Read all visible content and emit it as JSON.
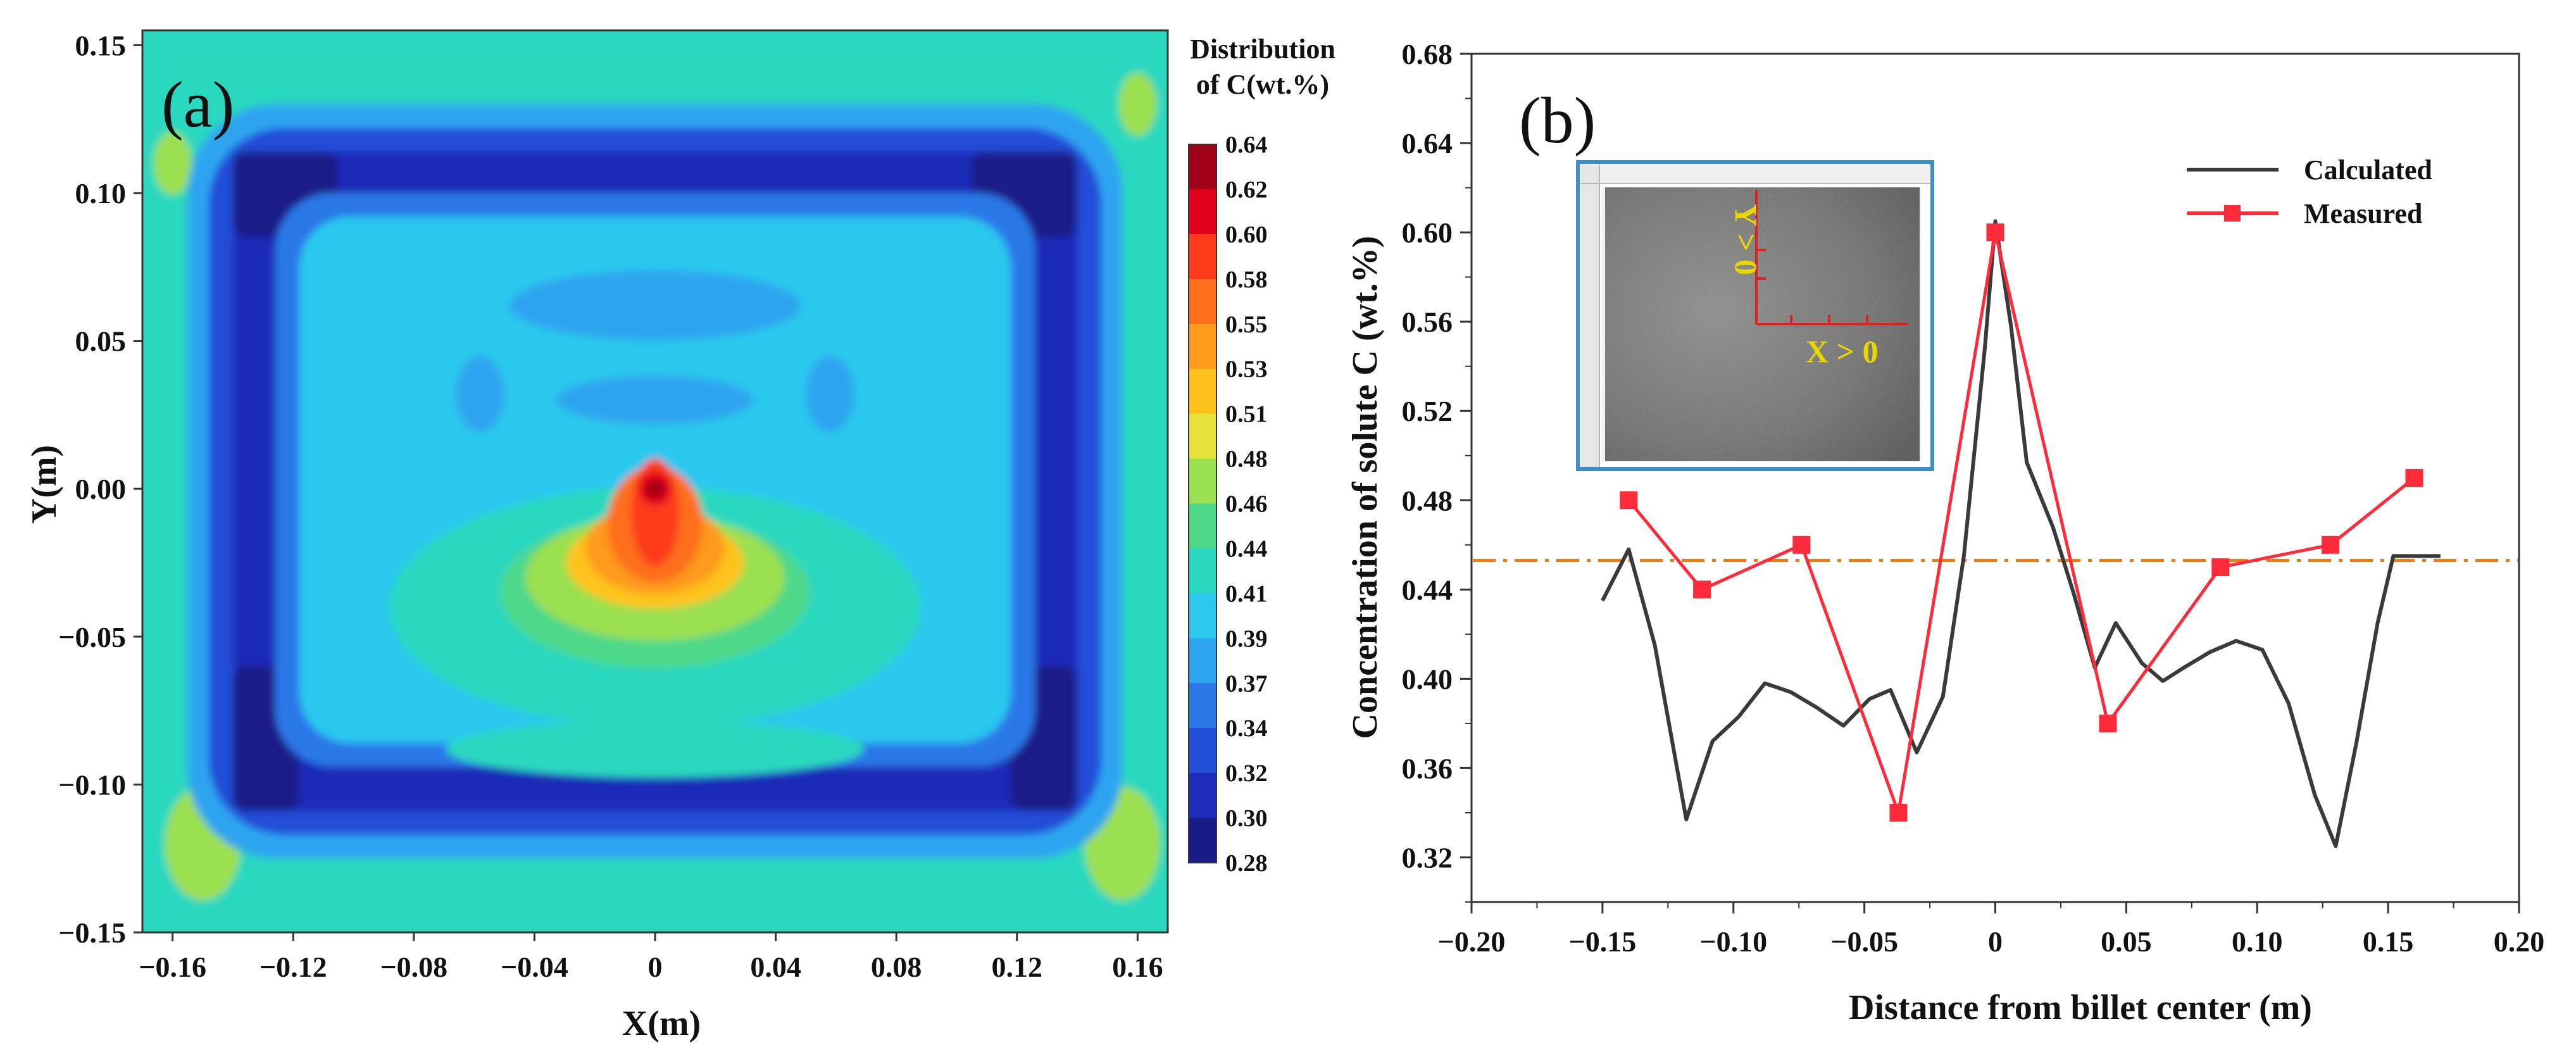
{
  "chart_data": [
    {
      "type": "heatmap",
      "panel_label": "(a)",
      "xlabel": "X(m)",
      "ylabel": "Y(m)",
      "xlim": [
        -0.17,
        0.17
      ],
      "ylim": [
        -0.15,
        0.155
      ],
      "xticks": [
        {
          "value": -0.16,
          "label": "−0.16"
        },
        {
          "value": -0.12,
          "label": "−0.12"
        },
        {
          "value": -0.08,
          "label": "−0.08"
        },
        {
          "value": -0.04,
          "label": "−0.04"
        },
        {
          "value": 0,
          "label": "0"
        },
        {
          "value": 0.04,
          "label": "0.04"
        },
        {
          "value": 0.08,
          "label": "0.08"
        },
        {
          "value": 0.12,
          "label": "0.12"
        },
        {
          "value": 0.16,
          "label": "0.16"
        }
      ],
      "yticks": [
        {
          "value": 0.15,
          "label": "0.15"
        },
        {
          "value": 0.1,
          "label": "0.10"
        },
        {
          "value": 0.05,
          "label": "0.05"
        },
        {
          "value": 0.0,
          "label": "0.00"
        },
        {
          "value": -0.05,
          "label": "−0.05"
        },
        {
          "value": -0.1,
          "label": "−0.10"
        },
        {
          "value": -0.15,
          "label": "−0.15"
        }
      ],
      "colorbar": {
        "title_line1": "Distribution",
        "title_line2": "of C(wt.%)",
        "ticks": [
          "0.64",
          "0.62",
          "0.60",
          "0.58",
          "0.55",
          "0.53",
          "0.51",
          "0.48",
          "0.46",
          "0.44",
          "0.41",
          "0.39",
          "0.37",
          "0.34",
          "0.32",
          "0.30",
          "0.28"
        ],
        "colors": [
          "#a00018",
          "#e0001c",
          "#ff3a1a",
          "#ff6e1a",
          "#ff9a1a",
          "#ffc21a",
          "#e6e23a",
          "#9be050",
          "#4ed88a",
          "#2ad8c0",
          "#2cc8ee",
          "#2ea4f0",
          "#2a78e8",
          "#224ed8",
          "#1c2cb8",
          "#1a1a88"
        ],
        "min": 0.28,
        "max": 0.64
      },
      "field_description_levels": {
        "background": 0.43,
        "outer_ring": 0.31,
        "inner_corner_pockets": 0.28,
        "interior": 0.41,
        "arches": 0.38,
        "center_peak": 0.64
      }
    },
    {
      "type": "line",
      "panel_label": "(b)",
      "xlabel": "Distance from billet center (m)",
      "ylabel": "Concentration of solute C (wt.%)",
      "xlim": [
        -0.2,
        0.2
      ],
      "ylim": [
        0.3,
        0.68
      ],
      "xticks": [
        {
          "value": -0.2,
          "label": "−0.20"
        },
        {
          "value": -0.15,
          "label": "−0.15"
        },
        {
          "value": -0.1,
          "label": "−0.10"
        },
        {
          "value": -0.05,
          "label": "−0.05"
        },
        {
          "value": 0,
          "label": "0"
        },
        {
          "value": 0.05,
          "label": "0.05"
        },
        {
          "value": 0.1,
          "label": "0.10"
        },
        {
          "value": 0.15,
          "label": "0.15"
        },
        {
          "value": 0.2,
          "label": "0.20"
        }
      ],
      "yticks": [
        {
          "value": 0.68,
          "label": "0.68"
        },
        {
          "value": 0.64,
          "label": "0.64"
        },
        {
          "value": 0.6,
          "label": "0.60"
        },
        {
          "value": 0.56,
          "label": "0.56"
        },
        {
          "value": 0.52,
          "label": "0.52"
        },
        {
          "value": 0.48,
          "label": "0.48"
        },
        {
          "value": 0.44,
          "label": "0.44"
        },
        {
          "value": 0.4,
          "label": "0.40"
        },
        {
          "value": 0.36,
          "label": "0.36"
        },
        {
          "value": 0.32,
          "label": "0.32"
        }
      ],
      "legend_position": "top-right",
      "series": [
        {
          "name": "Calculated",
          "color": "#3a3a3a",
          "x": [
            -0.15,
            -0.14,
            -0.13,
            -0.118,
            -0.108,
            -0.098,
            -0.088,
            -0.078,
            -0.068,
            -0.058,
            -0.048,
            -0.04,
            -0.03,
            -0.02,
            -0.012,
            -0.004,
            0.0,
            0.006,
            0.012,
            0.022,
            0.03,
            0.038,
            0.046,
            0.056,
            0.064,
            0.072,
            0.082,
            0.092,
            0.102,
            0.112,
            0.122,
            0.13,
            0.138,
            0.146,
            0.152,
            0.16,
            0.17
          ],
          "y": [
            0.435,
            0.458,
            0.415,
            0.337,
            0.372,
            0.383,
            0.398,
            0.394,
            0.387,
            0.379,
            0.391,
            0.395,
            0.367,
            0.392,
            0.455,
            0.548,
            0.605,
            0.558,
            0.497,
            0.468,
            0.438,
            0.405,
            0.425,
            0.407,
            0.399,
            0.405,
            0.412,
            0.417,
            0.413,
            0.389,
            0.348,
            0.325,
            0.372,
            0.425,
            0.455,
            0.455,
            0.455
          ]
        },
        {
          "name": "Measured",
          "color": "#ff2a3a",
          "x": [
            -0.14,
            -0.112,
            -0.074,
            -0.037,
            0.0,
            0.043,
            0.086,
            0.128,
            0.16
          ],
          "y": [
            0.48,
            0.44,
            0.46,
            0.34,
            0.6,
            0.38,
            0.45,
            0.46,
            0.49
          ]
        }
      ],
      "reference_line": {
        "y": 0.453,
        "color": "#f07a18",
        "style": "dash-dot"
      },
      "inset": {
        "x_arrow_label": "X > 0",
        "y_arrow_label": "Y > 0"
      }
    }
  ]
}
